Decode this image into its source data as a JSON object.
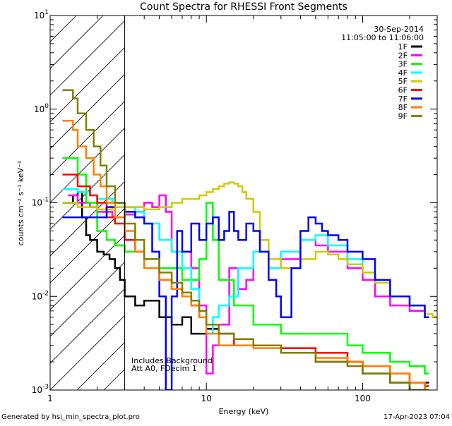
{
  "chart_data": {
    "type": "line",
    "title": "Count Spectra for RHESSI Front Segments",
    "xlabel": "Energy (keV)",
    "ylabel": "counts cm⁻² s⁻¹ keV⁻¹",
    "xscale": "log",
    "yscale": "log",
    "xlim": [
      1,
      300
    ],
    "ylim": [
      0.001,
      10
    ],
    "x_ticks": [
      {
        "value": 1,
        "label": "1"
      },
      {
        "value": 10,
        "label": "10"
      },
      {
        "value": 100,
        "label": "100"
      }
    ],
    "y_ticks": [
      {
        "value": 0.001,
        "base": "10",
        "exp": "-3"
      },
      {
        "value": 0.01,
        "base": "10",
        "exp": "-2"
      },
      {
        "value": 0.1,
        "base": "10",
        "exp": "-1"
      },
      {
        "value": 1,
        "base": "10",
        "exp": "0"
      },
      {
        "value": 10,
        "base": "10",
        "exp": "1"
      }
    ],
    "hatched_region": [
      1,
      3
    ],
    "legend_header": [
      "30-Sep-2014",
      "11:05:00 to 11:06:00"
    ],
    "annotations": [
      "Includes Background",
      "Att A0, FDecim 1"
    ],
    "series": [
      {
        "name": "1F",
        "color": "#000000",
        "values": [
          [
            1.2,
            0.1
          ],
          [
            1.4,
            0.12
          ],
          [
            1.5,
            0.13
          ],
          [
            1.6,
            0.07
          ],
          [
            1.7,
            0.045
          ],
          [
            1.8,
            0.04
          ],
          [
            2.0,
            0.03
          ],
          [
            2.2,
            0.028
          ],
          [
            2.4,
            0.025
          ],
          [
            2.6,
            0.02
          ],
          [
            2.8,
            0.015
          ],
          [
            3.0,
            0.01
          ],
          [
            3.5,
            0.008
          ],
          [
            4.0,
            0.009
          ],
          [
            5.0,
            0.006
          ],
          [
            6.0,
            0.005
          ],
          [
            7.0,
            0.006
          ],
          [
            8.0,
            0.004
          ],
          [
            10,
            0.0045
          ],
          [
            12,
            0.004
          ],
          [
            15,
            0.003
          ],
          [
            20,
            0.003
          ],
          [
            30,
            0.0025
          ],
          [
            50,
            0.002
          ],
          [
            80,
            0.002
          ],
          [
            100,
            0.0015
          ],
          [
            150,
            0.0012
          ],
          [
            200,
            0.001
          ],
          [
            250,
            0.0012
          ]
        ]
      },
      {
        "name": "2F",
        "color": "#ff00ff",
        "values": [
          [
            1.3,
            0.12
          ],
          [
            1.5,
            0.1
          ],
          [
            1.8,
            0.09
          ],
          [
            2.0,
            0.08
          ],
          [
            2.5,
            0.07
          ],
          [
            3.0,
            0.075
          ],
          [
            3.5,
            0.08
          ],
          [
            4.0,
            0.1
          ],
          [
            4.5,
            0.09
          ],
          [
            5.0,
            0.12
          ],
          [
            5.5,
            0.08
          ],
          [
            6.0,
            0.03
          ],
          [
            7.0,
            0.03
          ],
          [
            8.0,
            0.02
          ],
          [
            9.0,
            0.008
          ],
          [
            10,
            0.0015
          ],
          [
            11,
            0.003
          ],
          [
            12,
            0.005
          ],
          [
            14,
            0.02
          ],
          [
            16,
            0.012
          ],
          [
            18,
            0.015
          ],
          [
            20,
            0.03
          ],
          [
            25,
            0.02
          ],
          [
            30,
            0.025
          ],
          [
            40,
            0.04
          ],
          [
            50,
            0.035
          ],
          [
            60,
            0.03
          ],
          [
            80,
            0.02
          ],
          [
            100,
            0.015
          ],
          [
            120,
            0.01
          ],
          [
            150,
            0.008
          ],
          [
            200,
            0.007
          ],
          [
            250,
            0.006
          ]
        ]
      },
      {
        "name": "3F",
        "color": "#00ff00",
        "values": [
          [
            1.2,
            0.3
          ],
          [
            1.5,
            0.2
          ],
          [
            1.7,
            0.1
          ],
          [
            2.0,
            0.05
          ],
          [
            2.3,
            0.04
          ],
          [
            2.6,
            0.035
          ],
          [
            3.0,
            0.03
          ],
          [
            4.0,
            0.025
          ],
          [
            5.0,
            0.02
          ],
          [
            7.0,
            0.015
          ],
          [
            9.0,
            0.025
          ],
          [
            10,
            0.1
          ],
          [
            11,
            0.04
          ],
          [
            12,
            0.015
          ],
          [
            15,
            0.008
          ],
          [
            20,
            0.005
          ],
          [
            30,
            0.004
          ],
          [
            50,
            0.004
          ],
          [
            80,
            0.003
          ],
          [
            100,
            0.0025
          ],
          [
            150,
            0.002
          ],
          [
            200,
            0.0018
          ],
          [
            250,
            0.0015
          ]
        ]
      },
      {
        "name": "4F",
        "color": "#00ffff",
        "values": [
          [
            1.2,
            0.14
          ],
          [
            1.5,
            0.13
          ],
          [
            1.8,
            0.12
          ],
          [
            2.0,
            0.11
          ],
          [
            2.5,
            0.1
          ],
          [
            3.0,
            0.09
          ],
          [
            3.5,
            0.08
          ],
          [
            4.0,
            0.06
          ],
          [
            5.0,
            0.04
          ],
          [
            6.0,
            0.03
          ],
          [
            7.0,
            0.02
          ],
          [
            8.0,
            0.012
          ],
          [
            9.0,
            0.006
          ],
          [
            10,
            0.004
          ],
          [
            11,
            0.006
          ],
          [
            12,
            0.008
          ],
          [
            14,
            0.01
          ],
          [
            16,
            0.02
          ],
          [
            20,
            0.03
          ],
          [
            25,
            0.02
          ],
          [
            30,
            0.03
          ],
          [
            40,
            0.04
          ],
          [
            50,
            0.045
          ],
          [
            60,
            0.035
          ],
          [
            80,
            0.025
          ],
          [
            100,
            0.018
          ],
          [
            120,
            0.014
          ],
          [
            150,
            0.01
          ],
          [
            200,
            0.008
          ],
          [
            250,
            0.006
          ]
        ]
      },
      {
        "name": "5F",
        "color": "#cccc00",
        "values": [
          [
            1.2,
            0.1
          ],
          [
            1.5,
            0.09
          ],
          [
            2.0,
            0.085
          ],
          [
            2.5,
            0.09
          ],
          [
            3.0,
            0.09
          ],
          [
            4.0,
            0.085
          ],
          [
            5.0,
            0.09
          ],
          [
            6.0,
            0.1
          ],
          [
            7.0,
            0.11
          ],
          [
            8.0,
            0.11
          ],
          [
            9.0,
            0.12
          ],
          [
            10,
            0.13
          ],
          [
            11,
            0.14
          ],
          [
            12,
            0.15
          ],
          [
            13,
            0.16
          ],
          [
            14,
            0.165
          ],
          [
            15,
            0.16
          ],
          [
            16,
            0.15
          ],
          [
            17,
            0.13
          ],
          [
            18,
            0.11
          ],
          [
            20,
            0.08
          ],
          [
            22,
            0.04
          ],
          [
            25,
            0.025
          ],
          [
            30,
            0.02
          ],
          [
            40,
            0.025
          ],
          [
            50,
            0.03
          ],
          [
            60,
            0.028
          ],
          [
            70,
            0.025
          ],
          [
            80,
            0.022
          ],
          [
            100,
            0.018
          ],
          [
            120,
            0.014
          ],
          [
            150,
            0.01
          ],
          [
            200,
            0.008
          ],
          [
            250,
            0.0065
          ],
          [
            280,
            0.006
          ]
        ]
      },
      {
        "name": "6F",
        "color": "#ff0000",
        "values": [
          [
            1.2,
            0.2
          ],
          [
            1.5,
            0.15
          ],
          [
            1.8,
            0.12
          ],
          [
            2.0,
            0.1
          ],
          [
            2.3,
            0.07
          ],
          [
            2.6,
            0.06
          ],
          [
            3.0,
            0.04
          ],
          [
            3.5,
            0.03
          ],
          [
            4.0,
            0.02
          ],
          [
            5.0,
            0.015
          ],
          [
            6.0,
            0.012
          ],
          [
            7.0,
            0.01
          ],
          [
            8.0,
            0.008
          ],
          [
            9.0,
            0.006
          ],
          [
            10,
            0.005
          ],
          [
            12,
            0.004
          ],
          [
            15,
            0.003
          ],
          [
            20,
            0.003
          ],
          [
            30,
            0.0028
          ],
          [
            50,
            0.0025
          ],
          [
            80,
            0.002
          ],
          [
            100,
            0.0018
          ],
          [
            150,
            0.0015
          ],
          [
            200,
            0.0012
          ],
          [
            250,
            0.0011
          ]
        ]
      },
      {
        "name": "7F",
        "color": "#0000ff",
        "values": [
          [
            1.2,
            0.07
          ],
          [
            1.5,
            0.07
          ],
          [
            1.8,
            0.07
          ],
          [
            2.0,
            0.07
          ],
          [
            2.3,
            0.09
          ],
          [
            2.6,
            0.1
          ],
          [
            3.0,
            0.08
          ],
          [
            3.5,
            0.07
          ],
          [
            4.0,
            0.06
          ],
          [
            4.5,
            0.03
          ],
          [
            5.0,
            0.01
          ],
          [
            5.5,
            0.001
          ],
          [
            6.0,
            0.01
          ],
          [
            6.5,
            0.05
          ],
          [
            7.0,
            0.03
          ],
          [
            8.0,
            0.06
          ],
          [
            9.0,
            0.04
          ],
          [
            10,
            0.06
          ],
          [
            11,
            0.07
          ],
          [
            12,
            0.04
          ],
          [
            13,
            0.05
          ],
          [
            14,
            0.08
          ],
          [
            15,
            0.05
          ],
          [
            16,
            0.04
          ],
          [
            18,
            0.06
          ],
          [
            20,
            0.05
          ],
          [
            22,
            0.03
          ],
          [
            25,
            0.015
          ],
          [
            28,
            0.01
          ],
          [
            30,
            0.006
          ],
          [
            35,
            0.02
          ],
          [
            40,
            0.05
          ],
          [
            45,
            0.07
          ],
          [
            50,
            0.06
          ],
          [
            55,
            0.05
          ],
          [
            60,
            0.045
          ],
          [
            70,
            0.04
          ],
          [
            80,
            0.03
          ],
          [
            100,
            0.025
          ],
          [
            120,
            0.015
          ],
          [
            150,
            0.01
          ],
          [
            200,
            0.008
          ],
          [
            250,
            0.006
          ]
        ]
      },
      {
        "name": "8F",
        "color": "#ff8000",
        "values": [
          [
            1.2,
            0.75
          ],
          [
            1.4,
            0.6
          ],
          [
            1.5,
            0.4
          ],
          [
            1.7,
            0.3
          ],
          [
            1.9,
            0.2
          ],
          [
            2.1,
            0.15
          ],
          [
            2.3,
            0.1
          ],
          [
            2.6,
            0.07
          ],
          [
            3.0,
            0.05
          ],
          [
            3.5,
            0.03
          ],
          [
            4.0,
            0.02
          ],
          [
            5.0,
            0.015
          ],
          [
            6.0,
            0.012
          ],
          [
            7.0,
            0.01
          ],
          [
            8.0,
            0.008
          ],
          [
            9.0,
            0.006
          ],
          [
            10,
            0.004
          ],
          [
            12,
            0.003
          ],
          [
            15,
            0.003
          ],
          [
            20,
            0.0028
          ],
          [
            30,
            0.0025
          ],
          [
            50,
            0.0022
          ],
          [
            80,
            0.002
          ],
          [
            100,
            0.0018
          ],
          [
            150,
            0.0015
          ],
          [
            200,
            0.0012
          ],
          [
            250,
            0.001
          ]
        ]
      },
      {
        "name": "9F",
        "color": "#808000",
        "values": [
          [
            1.2,
            1.6
          ],
          [
            1.4,
            1.3
          ],
          [
            1.5,
            0.9
          ],
          [
            1.7,
            0.6
          ],
          [
            1.9,
            0.4
          ],
          [
            2.1,
            0.25
          ],
          [
            2.3,
            0.15
          ],
          [
            2.6,
            0.1
          ],
          [
            3.0,
            0.06
          ],
          [
            3.5,
            0.04
          ],
          [
            4.0,
            0.025
          ],
          [
            5.0,
            0.018
          ],
          [
            6.0,
            0.014
          ],
          [
            7.0,
            0.011
          ],
          [
            8.0,
            0.009
          ],
          [
            9.0,
            0.007
          ],
          [
            10,
            0.005
          ],
          [
            12,
            0.004
          ],
          [
            15,
            0.0035
          ],
          [
            20,
            0.003
          ],
          [
            30,
            0.0025
          ],
          [
            50,
            0.002
          ],
          [
            80,
            0.0018
          ],
          [
            100,
            0.0015
          ],
          [
            150,
            0.0012
          ],
          [
            200,
            0.001
          ],
          [
            250,
            0.001
          ]
        ]
      }
    ]
  },
  "footer": {
    "generated_by": "Generated by hsi_min_spectra_plot.pro",
    "date": "17-Apr-2023 07:04"
  }
}
